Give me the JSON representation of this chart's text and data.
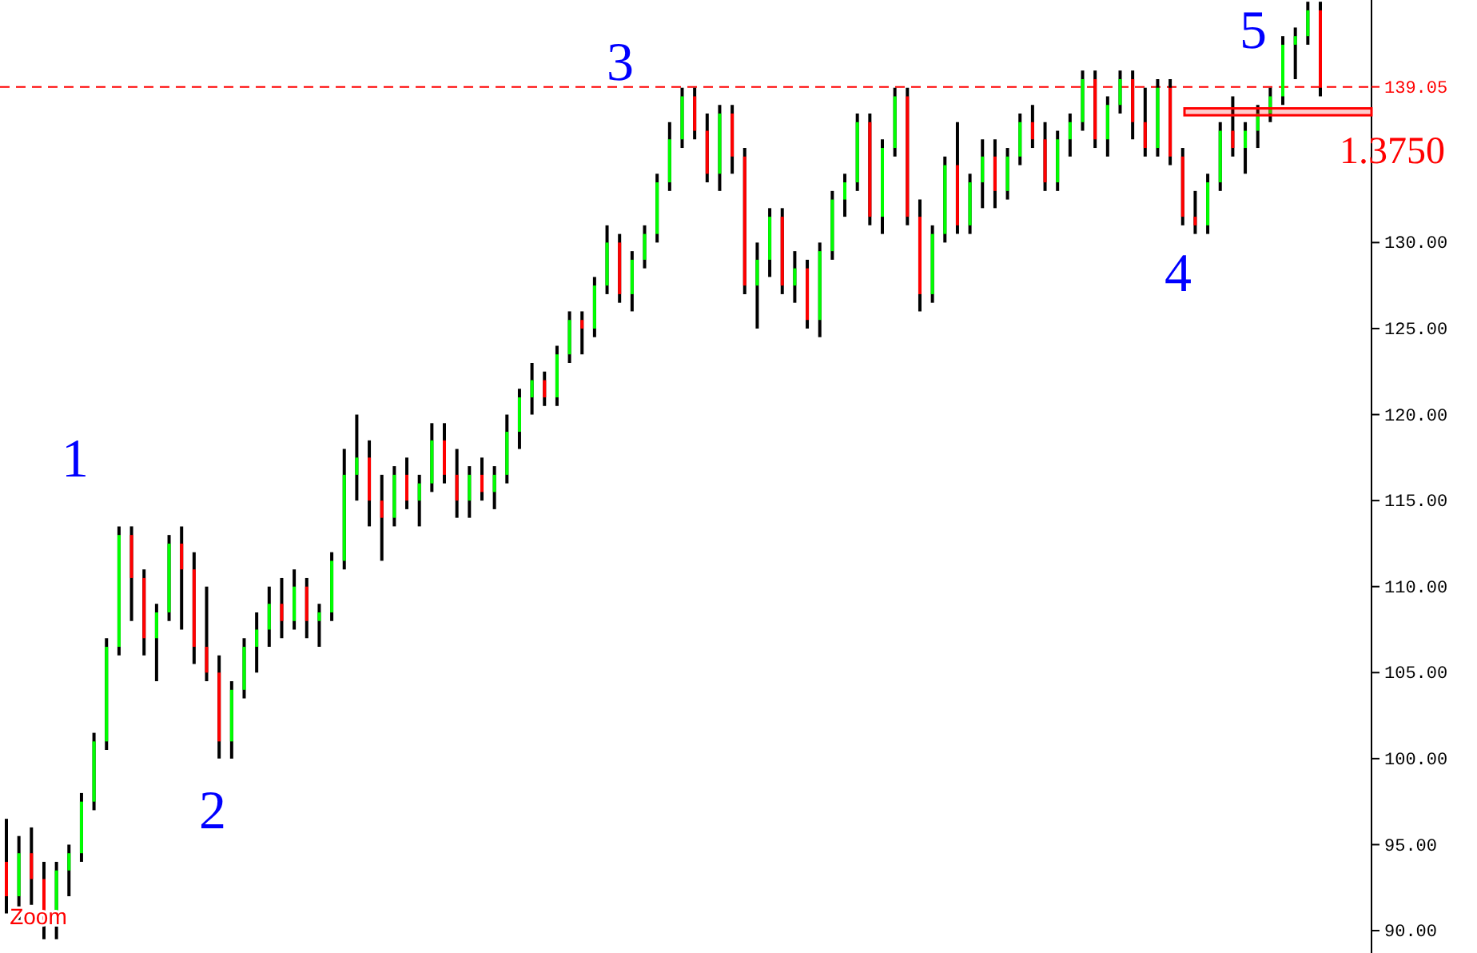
{
  "chart_data": {
    "type": "candlestick",
    "categories": [
      null,
      null,
      null,
      null,
      null,
      null,
      null,
      null,
      null,
      null,
      null,
      null,
      null,
      null,
      null,
      null,
      null,
      null,
      null,
      null,
      null,
      null,
      null,
      null,
      null,
      null,
      null,
      null,
      null,
      null,
      null,
      null,
      null,
      null,
      null,
      null,
      null,
      null,
      null,
      null,
      null,
      null,
      null,
      null,
      null,
      null,
      null,
      null,
      null,
      null,
      null,
      null,
      null,
      null,
      null,
      null,
      null,
      null,
      null,
      null,
      null,
      null,
      null,
      null,
      null,
      null,
      null,
      null,
      null,
      null,
      null,
      null,
      null,
      null,
      null,
      null,
      null,
      null,
      null,
      null,
      null,
      null,
      null,
      null,
      null,
      null,
      null,
      null,
      null,
      null,
      null,
      null,
      null,
      null,
      null,
      null,
      null,
      null,
      null,
      null,
      null,
      null,
      null,
      null,
      null,
      null
    ],
    "ohlc": [
      [
        94,
        96.5,
        91,
        92
      ],
      [
        92,
        95.5,
        90.5,
        94.5
      ],
      [
        94.5,
        96,
        91.5,
        93
      ],
      [
        93,
        94,
        89.5,
        90.5
      ],
      [
        90.5,
        94,
        89.5,
        93.5
      ],
      [
        93.5,
        95,
        92,
        94.5
      ],
      [
        94.5,
        98,
        94,
        97.5
      ],
      [
        97.5,
        101.5,
        97,
        101
      ],
      [
        101,
        107,
        100.5,
        106.5
      ],
      [
        106.5,
        113.5,
        106,
        113
      ],
      [
        113,
        113.5,
        108,
        110.5
      ],
      [
        110.5,
        111,
        106,
        107
      ],
      [
        107,
        109,
        104.5,
        108.5
      ],
      [
        108.5,
        113,
        108,
        112.5
      ],
      [
        112.5,
        113.5,
        107.5,
        111
      ],
      [
        111,
        112,
        105.5,
        106.5
      ],
      [
        106.5,
        110,
        104.5,
        105
      ],
      [
        105,
        106,
        100,
        101
      ],
      [
        101,
        104.5,
        100,
        104
      ],
      [
        104,
        107,
        103.5,
        106.5
      ],
      [
        106.5,
        108.5,
        105,
        107.5
      ],
      [
        107.5,
        110,
        106.5,
        109
      ],
      [
        109,
        110.5,
        107,
        108
      ],
      [
        108,
        111,
        107.5,
        110
      ],
      [
        110,
        110.5,
        107,
        108
      ],
      [
        108,
        109,
        106.5,
        108.5
      ],
      [
        108.5,
        112,
        108,
        111.5
      ],
      [
        111.5,
        118,
        111,
        116.5
      ],
      [
        116.5,
        120,
        115,
        117.5
      ],
      [
        117.5,
        118.5,
        113.5,
        115
      ],
      [
        115,
        116.5,
        111.5,
        114
      ],
      [
        114,
        117,
        113.5,
        116.5
      ],
      [
        116.5,
        117.5,
        114.5,
        115
      ],
      [
        115,
        116.5,
        113.5,
        116
      ],
      [
        116,
        119.5,
        115.5,
        118.5
      ],
      [
        118.5,
        119.5,
        116,
        116.5
      ],
      [
        116.5,
        118,
        114,
        115
      ],
      [
        115,
        117,
        114,
        116.5
      ],
      [
        116.5,
        117.5,
        115,
        115.5
      ],
      [
        115.5,
        117,
        114.5,
        116.5
      ],
      [
        116.5,
        120,
        116,
        119
      ],
      [
        119,
        121.5,
        118,
        121
      ],
      [
        121,
        123,
        120,
        122
      ],
      [
        122,
        122.5,
        120.5,
        121
      ],
      [
        121,
        124,
        120.5,
        123.5
      ],
      [
        123.5,
        126,
        123,
        125.5
      ],
      [
        125.5,
        126,
        123.5,
        125
      ],
      [
        125,
        128,
        124.5,
        127.5
      ],
      [
        127.5,
        131,
        127,
        130
      ],
      [
        130,
        130.5,
        126.5,
        127
      ],
      [
        127,
        129.5,
        126,
        129
      ],
      [
        129,
        131,
        128.5,
        130.5
      ],
      [
        130.5,
        134,
        130,
        133.5
      ],
      [
        133.5,
        137,
        133,
        136
      ],
      [
        136,
        139,
        135.5,
        138.5
      ],
      [
        138.5,
        139,
        136,
        136.5
      ],
      [
        136.5,
        137.5,
        133.5,
        134
      ],
      [
        134,
        138,
        133,
        137.5
      ],
      [
        137.5,
        138,
        134,
        135
      ],
      [
        135,
        135.5,
        127,
        127.5
      ],
      [
        127.5,
        130,
        125,
        129
      ],
      [
        129,
        132,
        128,
        131.5
      ],
      [
        131.5,
        132,
        127,
        127.5
      ],
      [
        127.5,
        129.5,
        126.5,
        128.5
      ],
      [
        128.5,
        129,
        125,
        125.5
      ],
      [
        125.5,
        130,
        124.5,
        129.5
      ],
      [
        129.5,
        133,
        129,
        132.5
      ],
      [
        132.5,
        134,
        131.5,
        133.5
      ],
      [
        133.5,
        137.5,
        133,
        137
      ],
      [
        137,
        137.5,
        131,
        131.5
      ],
      [
        131.5,
        136,
        130.5,
        135.5
      ],
      [
        135.5,
        139,
        135,
        138.5
      ],
      [
        138.5,
        139,
        131,
        131.5
      ],
      [
        131.5,
        132.5,
        126,
        127
      ],
      [
        127,
        131,
        126.5,
        130.5
      ],
      [
        130.5,
        135,
        130,
        134.5
      ],
      [
        134.5,
        137,
        130.5,
        131
      ],
      [
        131,
        134,
        130.5,
        133.5
      ],
      [
        133.5,
        136,
        132,
        135
      ],
      [
        135,
        136,
        132,
        133
      ],
      [
        133,
        135.5,
        132.5,
        135
      ],
      [
        135,
        137.5,
        134.5,
        137
      ],
      [
        137,
        138,
        135.5,
        136
      ],
      [
        136,
        137,
        133,
        133.5
      ],
      [
        133.5,
        136.5,
        133,
        136
      ],
      [
        136,
        137.5,
        135,
        137
      ],
      [
        137,
        140,
        136.5,
        139.5
      ],
      [
        139.5,
        140,
        135.5,
        136
      ],
      [
        136,
        138.5,
        135,
        138
      ],
      [
        138,
        140,
        137.5,
        139.5
      ],
      [
        139.5,
        140,
        136,
        137
      ],
      [
        137,
        139,
        135,
        135.5
      ],
      [
        135.5,
        139.5,
        135,
        139
      ],
      [
        139,
        139.5,
        134.5,
        135
      ],
      [
        135,
        135.5,
        131,
        131.5
      ],
      [
        131.5,
        133,
        130.5,
        131
      ],
      [
        131,
        134,
        130.5,
        133.5
      ],
      [
        133.5,
        137,
        133,
        136.5
      ],
      [
        136.5,
        138.5,
        135,
        135.5
      ],
      [
        135.5,
        137,
        134,
        136.5
      ],
      [
        136.5,
        138,
        135.5,
        137.5
      ],
      [
        137.5,
        139,
        137,
        138.5
      ],
      [
        138.5,
        142,
        138,
        141.5
      ],
      [
        141.5,
        142.5,
        139.5,
        142
      ],
      [
        142,
        144,
        141.5,
        143.5
      ],
      [
        143.5,
        144,
        138.5,
        139
      ]
    ],
    "colors": [
      "#ff0000",
      "#00ff00",
      "#ff0000",
      "#ff0000",
      "#00ff00",
      "#00ff00",
      "#00ff00",
      "#00ff00",
      "#00ff00",
      "#00ff00",
      "#ff0000",
      "#ff0000",
      "#00ff00",
      "#00ff00",
      "#ff0000",
      "#ff0000",
      "#ff0000",
      "#ff0000",
      "#00ff00",
      "#00ff00",
      "#00ff00",
      "#00ff00",
      "#ff0000",
      "#00ff00",
      "#ff0000",
      "#00ff00",
      "#00ff00",
      "#00ff00",
      "#00ff00",
      "#ff0000",
      "#ff0000",
      "#00ff00",
      "#ff0000",
      "#00ff00",
      "#00ff00",
      "#ff0000",
      "#ff0000",
      "#00ff00",
      "#ff0000",
      "#00ff00",
      "#00ff00",
      "#00ff00",
      "#00ff00",
      "#ff0000",
      "#00ff00",
      "#00ff00",
      "#ff0000",
      "#00ff00",
      "#00ff00",
      "#ff0000",
      "#00ff00",
      "#00ff00",
      "#00ff00",
      "#00ff00",
      "#00ff00",
      "#ff0000",
      "#ff0000",
      "#00ff00",
      "#ff0000",
      "#ff0000",
      "#00ff00",
      "#00ff00",
      "#ff0000",
      "#00ff00",
      "#ff0000",
      "#00ff00",
      "#00ff00",
      "#00ff00",
      "#00ff00",
      "#ff0000",
      "#00ff00",
      "#00ff00",
      "#ff0000",
      "#ff0000",
      "#00ff00",
      "#00ff00",
      "#ff0000",
      "#00ff00",
      "#00ff00",
      "#ff0000",
      "#00ff00",
      "#00ff00",
      "#ff0000",
      "#ff0000",
      "#00ff00",
      "#00ff00",
      "#00ff00",
      "#ff0000",
      "#00ff00",
      "#00ff00",
      "#ff0000",
      "#ff0000",
      "#00ff00",
      "#ff0000",
      "#ff0000",
      "#ff0000",
      "#00ff00",
      "#00ff00",
      "#ff0000",
      "#00ff00",
      "#00ff00",
      "#00ff00",
      "#00ff00",
      "#00ff00",
      "#00ff00",
      "#ff0000"
    ],
    "ylim": [
      88.7,
      144.1
    ],
    "yticks": [
      {
        "value": 90,
        "label": "90.00"
      },
      {
        "value": 95,
        "label": "95.00"
      },
      {
        "value": 100,
        "label": "100.00"
      },
      {
        "value": 105,
        "label": "105.00"
      },
      {
        "value": 110,
        "label": "110.00"
      },
      {
        "value": 115,
        "label": "115.00"
      },
      {
        "value": 120,
        "label": "120.00"
      },
      {
        "value": 125,
        "label": "125.00"
      },
      {
        "value": 130,
        "label": "130.00"
      }
    ],
    "ref_lines": [
      {
        "axis": "y",
        "value": 139.05,
        "label": "139.05",
        "color": "#ff0000",
        "line_style": "dashed"
      }
    ],
    "bands": [
      {
        "axis": "y",
        "from": 137.4,
        "to": 137.8,
        "label": "1.3750",
        "color": "#ff0000"
      }
    ],
    "annotations": [
      "1",
      "2",
      "3",
      "4",
      "5",
      "Zoom"
    ],
    "grid": false
  }
}
